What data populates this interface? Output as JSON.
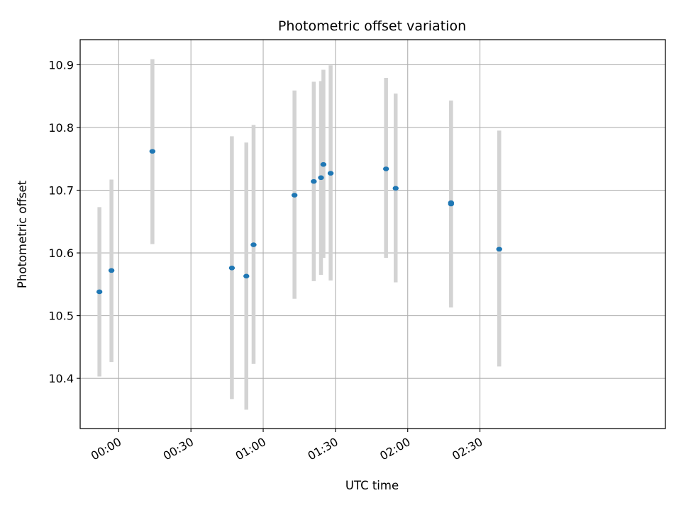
{
  "chart_data": {
    "type": "scatter",
    "title": "Photometric offset variation",
    "xlabel": "UTC time",
    "ylabel": "Photometric offset",
    "xlim": [
      "23:44",
      "03:47"
    ],
    "ylim": [
      10.32,
      10.94
    ],
    "grid": true,
    "x_ticks": [
      "00:00",
      "00:30",
      "01:00",
      "01:30",
      "02:00",
      "02:30"
    ],
    "y_ticks": [
      "10.4",
      "10.5",
      "10.6",
      "10.7",
      "10.8",
      "10.9"
    ],
    "colors": {
      "marker": "#1f77b4",
      "error_bar": "#d3d3d3",
      "grid": "#b0b0b0"
    },
    "points": [
      {
        "x": "23:52",
        "y": 10.538,
        "y_low": 10.403,
        "y_high": 10.673
      },
      {
        "x": "23:57",
        "y": 10.572,
        "y_low": 10.426,
        "y_high": 10.717
      },
      {
        "x": "00:14",
        "y": 10.762,
        "y_low": 10.614,
        "y_high": 10.909
      },
      {
        "x": "00:47",
        "y": 10.576,
        "y_low": 10.367,
        "y_high": 10.786
      },
      {
        "x": "00:53",
        "y": 10.563,
        "y_low": 10.35,
        "y_high": 10.776
      },
      {
        "x": "00:56",
        "y": 10.613,
        "y_low": 10.423,
        "y_high": 10.804
      },
      {
        "x": "01:13",
        "y": 10.692,
        "y_low": 10.527,
        "y_high": 10.859
      },
      {
        "x": "01:21",
        "y": 10.714,
        "y_low": 10.555,
        "y_high": 10.873
      },
      {
        "x": "01:24",
        "y": 10.72,
        "y_low": 10.565,
        "y_high": 10.874
      },
      {
        "x": "01:25",
        "y": 10.741,
        "y_low": 10.592,
        "y_high": 10.892
      },
      {
        "x": "01:28",
        "y": 10.727,
        "y_low": 10.556,
        "y_high": 10.899
      },
      {
        "x": "01:51",
        "y": 10.734,
        "y_low": 10.592,
        "y_high": 10.879
      },
      {
        "x": "01:55",
        "y": 10.703,
        "y_low": 10.553,
        "y_high": 10.854
      },
      {
        "x": "02:18",
        "y": 10.678,
        "y_low": 10.513,
        "y_high": 10.843
      },
      {
        "x": "02:18",
        "y": 10.68,
        "y_low": 10.519,
        "y_high": 10.841
      },
      {
        "x": "02:38",
        "y": 10.606,
        "y_low": 10.419,
        "y_high": 10.795
      }
    ]
  }
}
